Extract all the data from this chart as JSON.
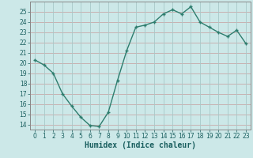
{
  "x": [
    0,
    1,
    2,
    3,
    4,
    5,
    6,
    7,
    8,
    9,
    10,
    11,
    12,
    13,
    14,
    15,
    16,
    17,
    18,
    19,
    20,
    21,
    22,
    23
  ],
  "y": [
    20.3,
    19.8,
    19.0,
    17.0,
    15.8,
    14.7,
    13.9,
    13.8,
    15.2,
    18.3,
    21.2,
    23.5,
    23.7,
    24.0,
    24.8,
    25.2,
    24.8,
    25.5,
    24.0,
    23.5,
    23.0,
    22.6,
    23.2,
    21.9
  ],
  "line_color": "#2e7d6e",
  "marker_color": "#2e7d6e",
  "bg_color": "#cce8e8",
  "grid_color_h": "#c8a8a8",
  "grid_color_v": "#a8c8c8",
  "xlabel": "Humidex (Indice chaleur)",
  "ylim": [
    13.5,
    26.0
  ],
  "xlim": [
    -0.5,
    23.5
  ],
  "yticks": [
    14,
    15,
    16,
    17,
    18,
    19,
    20,
    21,
    22,
    23,
    24,
    25
  ],
  "xticks": [
    0,
    1,
    2,
    3,
    4,
    5,
    6,
    7,
    8,
    9,
    10,
    11,
    12,
    13,
    14,
    15,
    16,
    17,
    18,
    19,
    20,
    21,
    22,
    23
  ],
  "tick_fontsize": 5.5,
  "label_fontsize": 7.0,
  "line_width": 1.0,
  "marker_size": 2.5,
  "spine_color": "#888888"
}
